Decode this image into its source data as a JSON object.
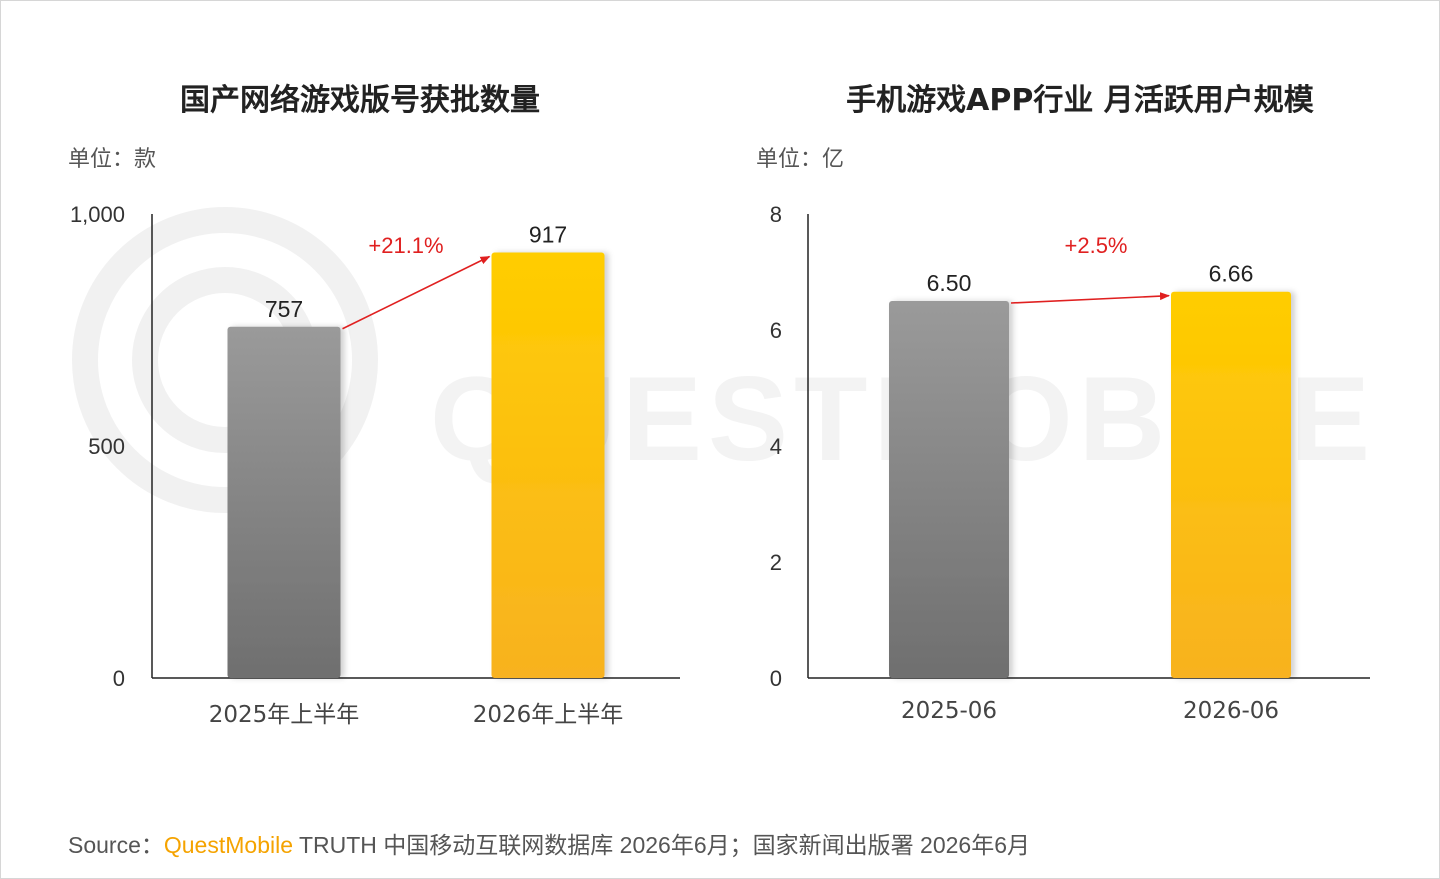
{
  "colors": {
    "bar_gray_top": "#9a9a9a",
    "bar_gray_bottom": "#6f6f6f",
    "bar_gold_top": "#ffcd00",
    "bar_gold_bottom": "#f8b220",
    "arrow": "#e02020",
    "brand": "#f5a300"
  },
  "chart_data": [
    {
      "type": "bar",
      "title": "国产网络游戏版号获批数量",
      "unit": "单位：款",
      "categories": [
        "2025年上半年",
        "2026年上半年"
      ],
      "values": [
        757,
        917
      ],
      "value_labels": [
        "757",
        "917"
      ],
      "ylim": [
        0,
        1000
      ],
      "yticks": [
        0,
        500,
        1000
      ],
      "ytick_labels": [
        "0",
        "500",
        "1,000"
      ],
      "growth_label": "+21.1%",
      "grid": false
    },
    {
      "type": "bar",
      "title": "手机游戏APP行业 月活跃用户规模",
      "unit": "单位：亿",
      "categories": [
        "2025-06",
        "2026-06"
      ],
      "values": [
        6.5,
        6.66
      ],
      "value_labels": [
        "6.50",
        "6.66"
      ],
      "ylim": [
        0,
        8
      ],
      "yticks": [
        0,
        2,
        4,
        6,
        8
      ],
      "ytick_labels": [
        "0",
        "2",
        "4",
        "6",
        "8"
      ],
      "growth_label": "+2.5%",
      "grid": false
    }
  ],
  "source": {
    "prefix": "Source：",
    "brand": "QuestMobile",
    "text": " TRUTH 中国移动互联网数据库 2026年6月；国家新闻出版署 2026年6月"
  }
}
